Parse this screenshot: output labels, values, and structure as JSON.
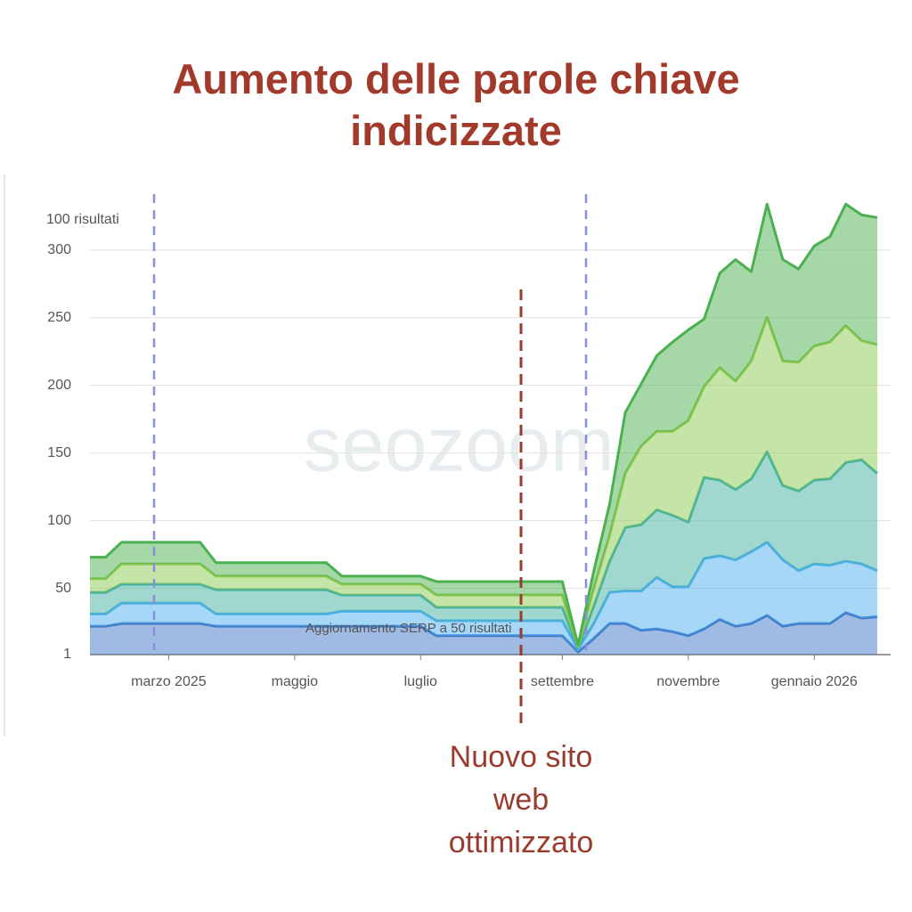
{
  "chart_data": {
    "type": "stacked-area",
    "title": "Aumento delle parole chiave indicizzate",
    "y_label": "100 risultati",
    "annotations": [
      "Aggiornamento SERP a 50 risultati",
      "Nuovo sito web ottimizzato"
    ],
    "watermark": "seozoom",
    "categories": [
      null,
      null,
      null,
      null,
      null,
      "marzo 2025",
      null,
      null,
      null,
      null,
      null,
      null,
      null,
      "maggio",
      null,
      null,
      null,
      null,
      null,
      null,
      null,
      "luglio",
      null,
      null,
      null,
      null,
      null,
      null,
      null,
      null,
      "settembre",
      null,
      null,
      null,
      null,
      null,
      null,
      null,
      "novembre",
      null,
      null,
      null,
      null,
      null,
      null,
      null,
      "gennaio 2026",
      null,
      null,
      null,
      null
    ],
    "series": [
      {
        "color": "#3f78c8",
        "values": [
          22,
          22,
          24,
          24,
          24,
          24,
          24,
          24,
          22,
          22,
          22,
          22,
          22,
          22,
          22,
          22,
          22,
          22,
          22,
          22,
          22,
          22,
          15,
          15,
          15,
          15,
          15,
          15,
          15,
          15,
          15,
          3,
          13,
          24,
          24,
          19,
          20,
          18,
          15,
          20,
          27,
          22,
          24,
          30,
          22,
          24,
          24,
          24,
          32,
          28,
          29
        ]
      },
      {
        "color": "#4fb0ee",
        "values": [
          9,
          9,
          15,
          15,
          15,
          15,
          15,
          15,
          9,
          9,
          9,
          9,
          9,
          9,
          9,
          9,
          11,
          11,
          11,
          11,
          11,
          11,
          11,
          11,
          11,
          11,
          11,
          11,
          11,
          11,
          11,
          2,
          11,
          23,
          24,
          29,
          38,
          33,
          36,
          52,
          47,
          49,
          53,
          54,
          49,
          39,
          44,
          43,
          38,
          40,
          34
        ]
      },
      {
        "color": "#42b0a0",
        "values": [
          16,
          16,
          14,
          14,
          14,
          14,
          14,
          14,
          18,
          18,
          18,
          18,
          18,
          18,
          18,
          18,
          12,
          12,
          12,
          12,
          12,
          12,
          10,
          10,
          10,
          10,
          10,
          10,
          10,
          10,
          10,
          1,
          13,
          23,
          47,
          49,
          50,
          53,
          48,
          60,
          56,
          52,
          54,
          67,
          55,
          59,
          62,
          64,
          73,
          77,
          72
        ]
      },
      {
        "color": "#8cc94f",
        "values": [
          10,
          10,
          15,
          15,
          15,
          15,
          15,
          15,
          10,
          10,
          10,
          10,
          10,
          10,
          10,
          10,
          8,
          8,
          8,
          8,
          8,
          8,
          9,
          9,
          9,
          9,
          9,
          9,
          9,
          9,
          9,
          1,
          13,
          19,
          40,
          58,
          58,
          62,
          75,
          67,
          83,
          80,
          87,
          99,
          92,
          95,
          99,
          101,
          101,
          88,
          95
        ]
      },
      {
        "color": "#4bb050",
        "values": [
          16,
          16,
          16,
          16,
          16,
          16,
          16,
          16,
          10,
          10,
          10,
          10,
          10,
          10,
          10,
          10,
          6,
          6,
          6,
          6,
          6,
          6,
          10,
          10,
          10,
          10,
          10,
          10,
          10,
          10,
          10,
          1,
          13,
          23,
          45,
          46,
          56,
          66,
          67,
          50,
          70,
          90,
          66,
          84,
          75,
          69,
          74,
          78,
          90,
          93,
          94
        ]
      }
    ],
    "ylim": [
      1,
      340
    ],
    "yticks": [
      1,
      50,
      100,
      150,
      200,
      250,
      300
    ],
    "grid": true
  }
}
